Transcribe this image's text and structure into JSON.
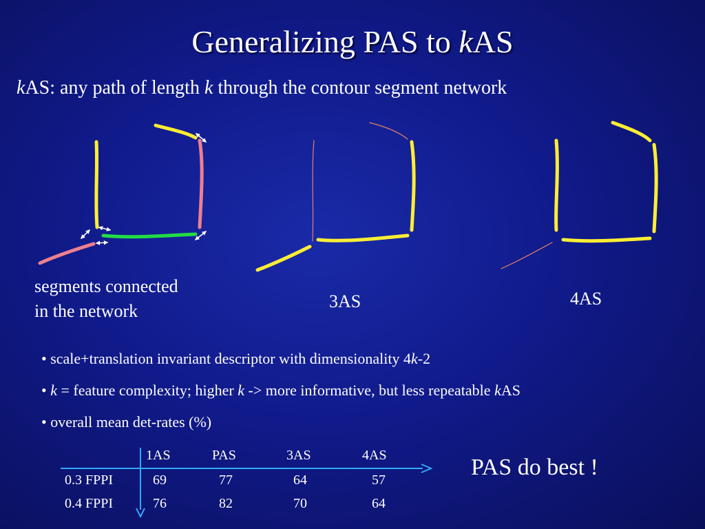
{
  "slide": {
    "title_prefix": "Generalizing PAS to ",
    "title_italic": "k",
    "title_suffix": "AS",
    "subtitle_italic_k": "k",
    "subtitle_part1": "AS: any path of length ",
    "subtitle_italic_k2": "k",
    "subtitle_part2": " through the contour segment network"
  },
  "captions": {
    "network_line1": "segments connected",
    "network_line2": "in the network",
    "three_as": "3AS",
    "four_as": "4AS"
  },
  "bullets": [
    {
      "pre": "• scale+translation invariant descriptor with dimensionality 4",
      "italic": "k",
      "post": "-2"
    },
    {
      "pre": "• ",
      "italic": "k",
      "mid": " = feature complexity; higher ",
      "italic2": "k",
      "post": " -> more informative, but less repeatable ",
      "italic3": "k",
      "post2": "AS"
    },
    {
      "pre": "• overall mean det-rates (%)"
    }
  ],
  "table": {
    "headers": [
      "1AS",
      "PAS",
      "3AS",
      "4AS"
    ],
    "rows": [
      {
        "label": "0.3 FPPI",
        "values": [
          "69",
          "77",
          "64",
          "57"
        ]
      },
      {
        "label": "0.4 FPPI",
        "values": [
          "76",
          "82",
          "70",
          "64"
        ]
      }
    ]
  },
  "callout": "PAS do best !",
  "colors": {
    "background": "#101a8a",
    "segment_yellow": "#ffee33",
    "segment_pink": "#ee7f8f",
    "segment_green": "#22dd44",
    "segment_thin": "#e8806a",
    "table_axis": "#33aaff",
    "arrow": "#ffffff"
  }
}
